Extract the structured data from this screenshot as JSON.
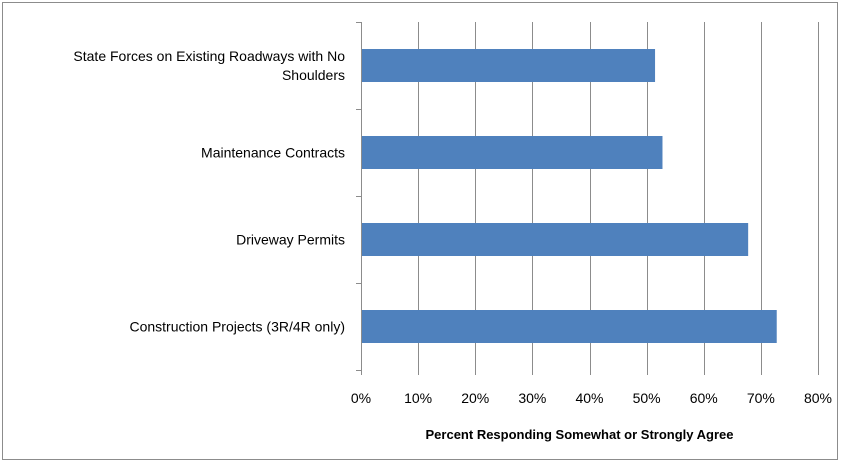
{
  "chart_data": {
    "type": "bar",
    "orientation": "horizontal",
    "categories": [
      "State Forces on Existing Roadways with No Shoulders",
      "Maintenance Contracts",
      "Driveway Permits",
      "Construction Projects (3R/4R only)"
    ],
    "category_label_lines": [
      [
        "State Forces on Existing Roadways with No",
        "Shoulders"
      ],
      [
        "Maintenance Contracts"
      ],
      [
        "Driveway Permits"
      ],
      [
        "Construction Projects (3R/4R only)"
      ]
    ],
    "values": [
      51.3,
      52.6,
      67.6,
      72.6
    ],
    "xlabel": "Percent Responding Somewhat or Strongly Agree",
    "ylabel": "",
    "xlim": [
      0,
      80
    ],
    "xticks": [
      0,
      10,
      20,
      30,
      40,
      50,
      60,
      70,
      80
    ],
    "xtick_labels": [
      "0%",
      "10%",
      "20%",
      "30%",
      "40%",
      "50%",
      "60%",
      "70%",
      "80%"
    ],
    "grid": "vertical",
    "legend": "none",
    "bar_color": "#4f81bd",
    "grid_color": "#8c8c8c"
  }
}
